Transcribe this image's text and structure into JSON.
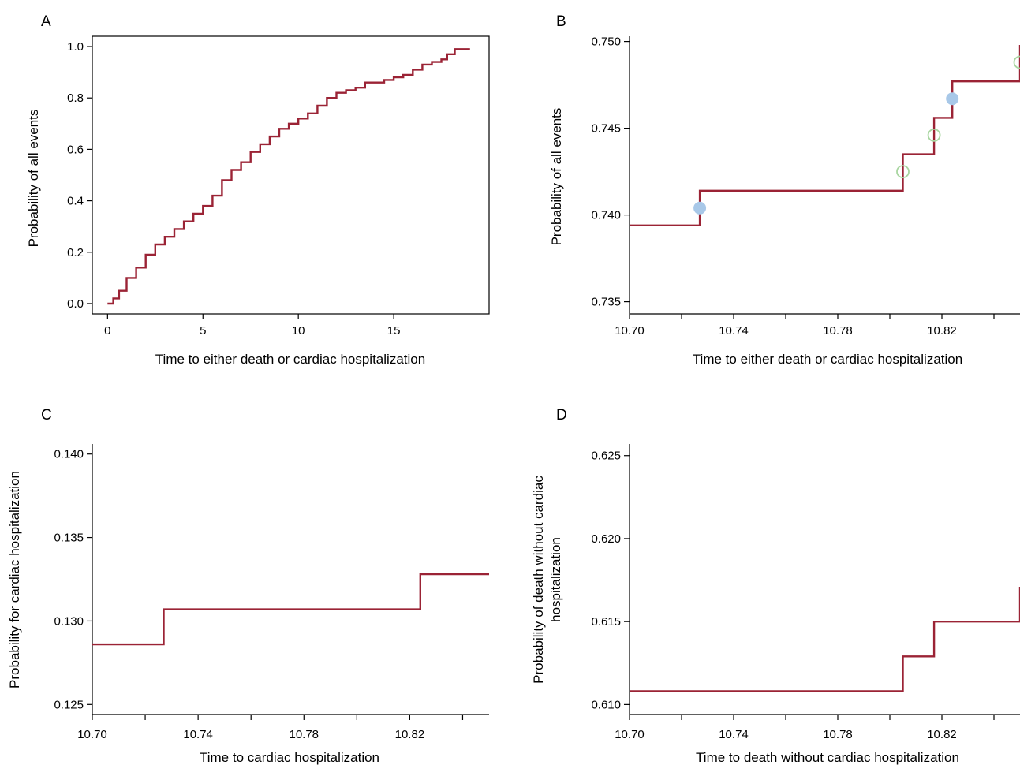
{
  "figure": {
    "line_color": "#9b2335",
    "marker_filled_color": "#a8c8e8",
    "marker_open_color": "#a9d6a1"
  },
  "chart_data": [
    {
      "panel": "A",
      "type": "line",
      "xlabel": "Time to either death or cardiac hospitalization",
      "ylabel": "Probability of all events",
      "xlim": [
        -0.8,
        20
      ],
      "ylim": [
        -0.04,
        1.04
      ],
      "xticks": [
        0,
        5,
        10,
        15
      ],
      "yticks": [
        0.0,
        0.2,
        0.4,
        0.6,
        0.8,
        1.0
      ],
      "xtick_labels": [
        "0",
        "5",
        "10",
        "15"
      ],
      "ytick_labels": [
        "0.0",
        "0.2",
        "0.4",
        "0.6",
        "0.8",
        "1.0"
      ],
      "series": [
        {
          "step": true,
          "x": [
            0,
            0.3,
            0.6,
            1.0,
            1.5,
            2.0,
            2.5,
            3.0,
            3.5,
            4.0,
            4.5,
            5.0,
            5.5,
            6.0,
            6.5,
            7.0,
            7.5,
            8.0,
            8.5,
            9.0,
            9.5,
            10.0,
            10.5,
            11.0,
            11.5,
            12.0,
            12.5,
            13.0,
            13.5,
            14.0,
            14.5,
            15.0,
            15.5,
            16.0,
            16.5,
            17.0,
            17.5,
            17.8,
            18.2,
            19.0
          ],
          "y": [
            0.0,
            0.02,
            0.05,
            0.1,
            0.14,
            0.19,
            0.23,
            0.26,
            0.29,
            0.32,
            0.35,
            0.38,
            0.42,
            0.48,
            0.52,
            0.55,
            0.59,
            0.62,
            0.65,
            0.68,
            0.7,
            0.72,
            0.74,
            0.77,
            0.8,
            0.82,
            0.83,
            0.84,
            0.86,
            0.86,
            0.87,
            0.88,
            0.89,
            0.91,
            0.93,
            0.94,
            0.95,
            0.97,
            0.99,
            0.99
          ]
        }
      ]
    },
    {
      "panel": "B",
      "type": "line",
      "xlabel": "Time to either death or cardiac hospitalization",
      "ylabel": "Probability of all events",
      "xlim": [
        10.7,
        10.85
      ],
      "ylim": [
        0.7343,
        0.7503
      ],
      "xticks": [
        10.7,
        10.74,
        10.78,
        10.82
      ],
      "yticks": [
        0.735,
        0.74,
        0.745,
        0.75
      ],
      "xtick_labels": [
        "10.70",
        "10.74",
        "10.78",
        "10.82"
      ],
      "ytick_labels": [
        "0.735",
        "0.740",
        "0.745",
        "0.750"
      ],
      "minor_xticks": [
        10.72,
        10.76,
        10.8,
        10.84
      ],
      "series": [
        {
          "step": true,
          "x": [
            10.7,
            10.727,
            10.805,
            10.817,
            10.824,
            10.85
          ],
          "y": [
            0.7394,
            0.7414,
            0.7435,
            0.7456,
            0.7477,
            0.7498
          ]
        }
      ],
      "markers": [
        {
          "style": "filled",
          "x": 10.727,
          "y": 0.7404
        },
        {
          "style": "open",
          "x": 10.805,
          "y": 0.7425
        },
        {
          "style": "open",
          "x": 10.817,
          "y": 0.7446
        },
        {
          "style": "filled",
          "x": 10.824,
          "y": 0.7467
        },
        {
          "style": "open",
          "x": 10.85,
          "y": 0.7488
        }
      ]
    },
    {
      "panel": "C",
      "type": "line",
      "xlabel": "Time to cardiac hospitalization",
      "ylabel": "Probability for cardiac hospitalization",
      "xlim": [
        10.7,
        10.85
      ],
      "ylim": [
        0.1244,
        0.1406
      ],
      "xticks": [
        10.7,
        10.74,
        10.78,
        10.82
      ],
      "yticks": [
        0.125,
        0.13,
        0.135,
        0.14
      ],
      "xtick_labels": [
        "10.70",
        "10.74",
        "10.78",
        "10.82"
      ],
      "ytick_labels": [
        "0.125",
        "0.130",
        "0.135",
        "0.140"
      ],
      "minor_xticks": [
        10.72,
        10.76,
        10.8,
        10.84
      ],
      "series": [
        {
          "step": true,
          "x": [
            10.7,
            10.727,
            10.824,
            10.85
          ],
          "y": [
            0.1286,
            0.1307,
            0.1328,
            0.1328
          ]
        }
      ]
    },
    {
      "panel": "D",
      "type": "line",
      "xlabel": "Time to death without cardiac hospitalization",
      "ylabel": "Probability of death without cardiac hospitalization",
      "ylabel_lines": [
        "Probability of death without cardiac",
        "hospitalization"
      ],
      "xlim": [
        10.7,
        10.85
      ],
      "ylim": [
        0.6094,
        0.6257
      ],
      "xticks": [
        10.7,
        10.74,
        10.78,
        10.82
      ],
      "yticks": [
        0.61,
        0.615,
        0.62,
        0.625
      ],
      "xtick_labels": [
        "10.70",
        "10.74",
        "10.78",
        "10.82"
      ],
      "ytick_labels": [
        "0.610",
        "0.615",
        "0.620",
        "0.625"
      ],
      "minor_xticks": [
        10.72,
        10.76,
        10.8,
        10.84
      ],
      "series": [
        {
          "step": true,
          "x": [
            10.7,
            10.805,
            10.817,
            10.85
          ],
          "y": [
            0.6108,
            0.6129,
            0.615,
            0.6171
          ]
        }
      ]
    }
  ]
}
